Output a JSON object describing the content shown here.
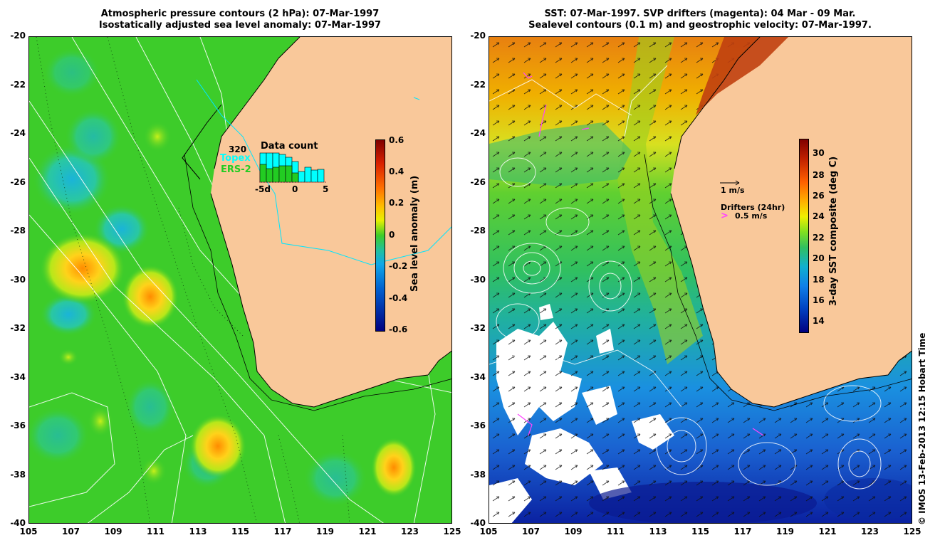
{
  "left_panel": {
    "title_line1": "Atmospheric pressure contours (2 hPa): 07-Mar-1997",
    "title_line2": "Isostatically adjusted sea level anomaly: 07-Mar-1997",
    "colorbar_label": "Sea level anomaly (m)",
    "colorbar_ticks": [
      "0.6",
      "0.4",
      "0.2",
      "0",
      "-0.2",
      "-0.4",
      "-0.6"
    ],
    "inset": {
      "title": "Data count",
      "max_count": "320",
      "series_topex": "Topex",
      "series_ers2": "ERS-2",
      "x_ticks": [
        "-5d",
        "0",
        "5"
      ],
      "topex_color": "#00ffff",
      "ers2_color": "#22cc22"
    }
  },
  "right_panel": {
    "title_line1": "SST: 07-Mar-1997. SVP drifters (magenta): 04 Mar - 09 Mar.",
    "title_line2": "Sealevel contours (0.1 m) and geostrophic velocity: 07-Mar-1997.",
    "colorbar_label": "3-day SST composite (deg C)",
    "colorbar_ticks": [
      "30",
      "28",
      "26",
      "24",
      "22",
      "20",
      "18",
      "16",
      "14"
    ],
    "velocity_legend": "1 m/s",
    "drifter_legend_title": "Drifters (24hr)",
    "drifter_legend_value": "0.5 m/s",
    "drifter_color": "#ff44ff"
  },
  "axes": {
    "y_ticks": [
      "-20",
      "-22",
      "-24",
      "-26",
      "-28",
      "-30",
      "-32",
      "-34",
      "-36",
      "-38",
      "-40"
    ],
    "x_ticks": [
      "105",
      "107",
      "109",
      "111",
      "113",
      "115",
      "117",
      "119",
      "121",
      "123",
      "125"
    ]
  },
  "credit": "© IMOS 13-Feb-2013 12:15 Hobart Time",
  "colors": {
    "land": "#f9c89a",
    "ocean_left": "#3dcc2a",
    "ocean_right_warm": "#e88a10",
    "ocean_right_cool": "#1a6ed6"
  }
}
